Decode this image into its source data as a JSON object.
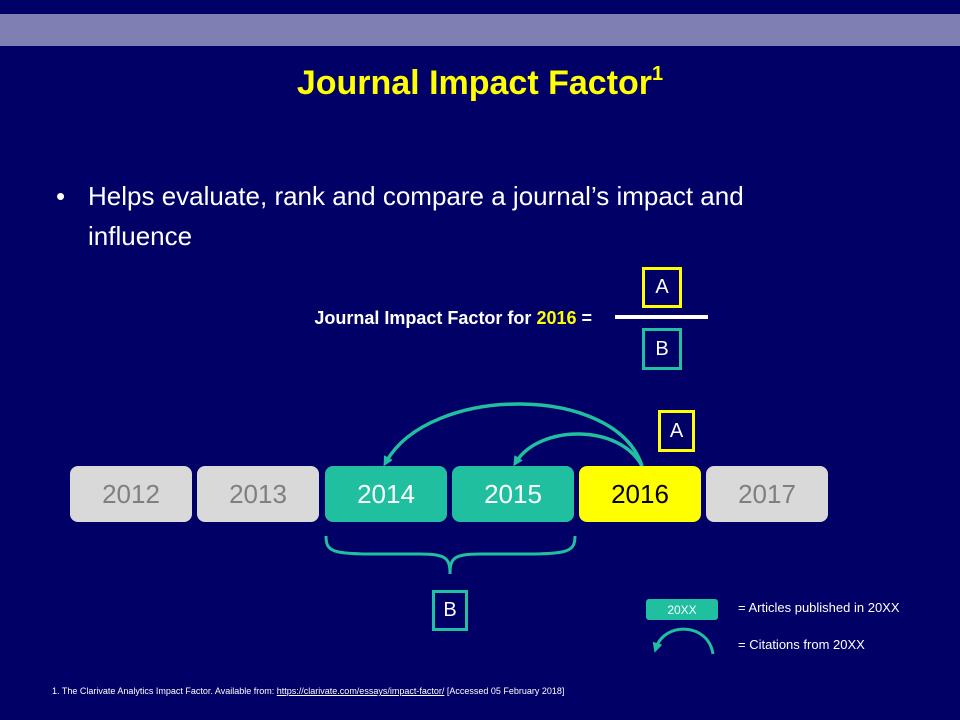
{
  "slide": {
    "title": "Journal Impact Factor",
    "title_sup": "1",
    "bullet": "Helps evaluate, rank and compare a journal’s impact and influence"
  },
  "formula": {
    "label_prefix": "Journal Impact Factor for ",
    "label_year": "2016",
    "label_suffix": " =",
    "numerator": "A",
    "denominator": "B"
  },
  "timeline": {
    "years": [
      {
        "label": "2012",
        "state": "gray"
      },
      {
        "label": "2013",
        "state": "gray"
      },
      {
        "label": "2014",
        "state": "teal"
      },
      {
        "label": "2015",
        "state": "teal"
      },
      {
        "label": "2016",
        "state": "yellow"
      },
      {
        "label": "2017",
        "state": "gray"
      }
    ],
    "citations_label": "A",
    "articles_label": "B"
  },
  "legend": {
    "chip_label": "20XX",
    "articles_text": "= Articles published in 20XX",
    "citations_text": "= Citations from 20XX"
  },
  "footnote": {
    "prefix": "1. The Clarivate Analytics Impact Factor. Available from: ",
    "link": "https://clarivate.com/essays/impact-factor/",
    "suffix": " [Accessed 05 February 2018]"
  },
  "colors": {
    "background": "#000066",
    "title": "#ffff00",
    "teal": "#1fbfa0",
    "gray": "#d9d9d9",
    "highlight": "#ffff00"
  }
}
